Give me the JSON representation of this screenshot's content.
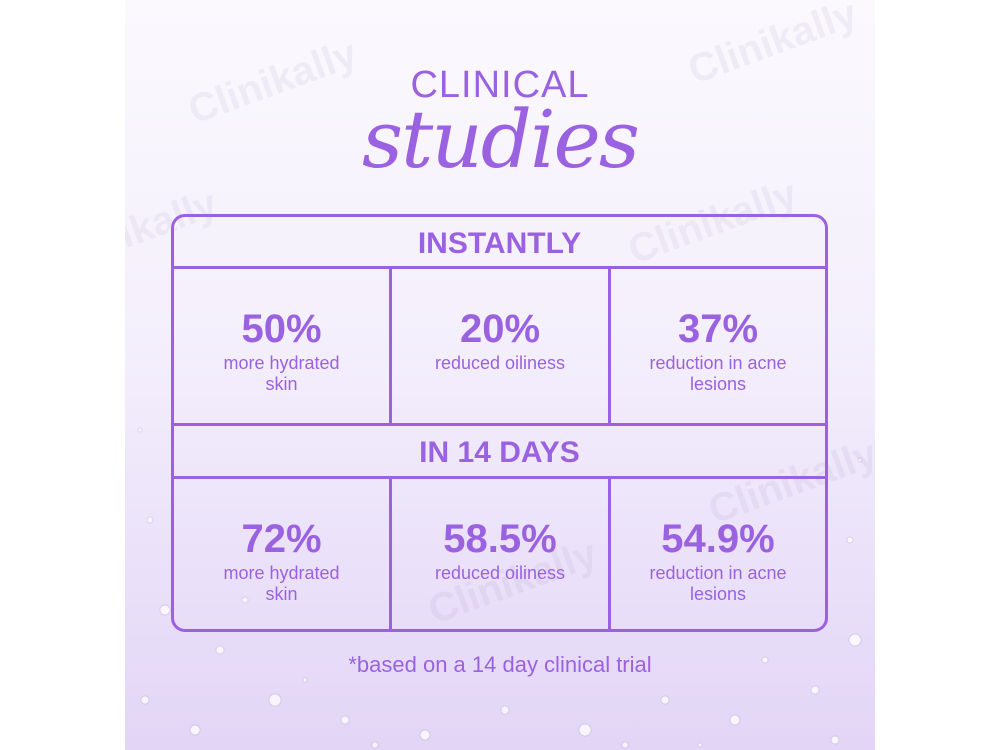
{
  "watermark": "Clinikally",
  "title": {
    "line1": "CLINICAL",
    "line2": "studies"
  },
  "sections": [
    {
      "heading": "INSTANTLY",
      "stats": [
        {
          "value": "50%",
          "label": "more hydrated skin"
        },
        {
          "value": "20%",
          "label": "reduced oiliness"
        },
        {
          "value": "37%",
          "label": "reduction in acne lesions"
        }
      ]
    },
    {
      "heading": "IN 14 DAYS",
      "stats": [
        {
          "value": "72%",
          "label": "more hydrated skin"
        },
        {
          "value": "58.5%",
          "label": "reduced oiliness"
        },
        {
          "value": "54.9%",
          "label": "reduction in acne lesions"
        }
      ]
    }
  ],
  "footnote": "*based on a 14 day clinical trial",
  "colors": {
    "accent": "#9a62e0",
    "background": "#f4effc"
  }
}
